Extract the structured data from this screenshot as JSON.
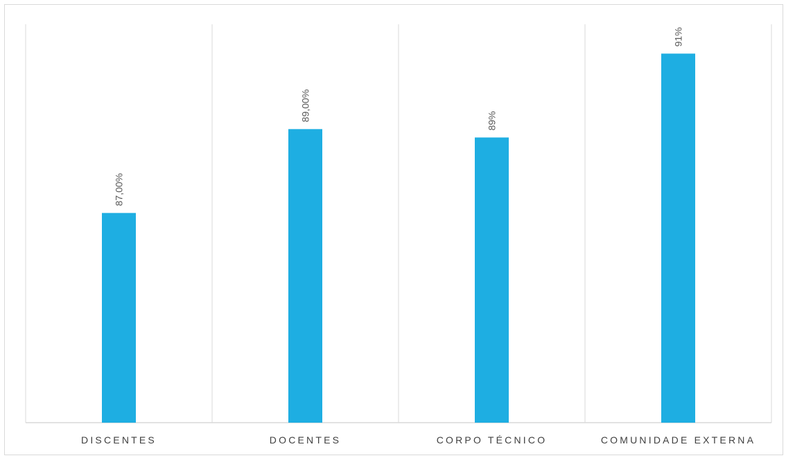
{
  "chart_data": {
    "type": "bar",
    "categories": [
      "DISCENTES",
      "DOCENTES",
      "CORPO TÉCNICO",
      "COMUNIDADE EXTERNA"
    ],
    "values": [
      87.0,
      89.0,
      88.8,
      90.8
    ],
    "data_labels": [
      "87,00%",
      "89,00%",
      "89%",
      "91%"
    ],
    "title": "",
    "xlabel": "",
    "ylabel": "",
    "ylim": [
      82,
      91.5
    ],
    "bar_color": "#1eaee2",
    "grid": "vertical separators between categories",
    "legend": "none"
  }
}
